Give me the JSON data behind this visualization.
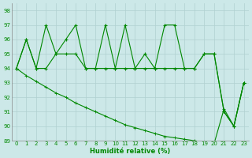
{
  "xlabel": "Humidité relative (%)",
  "xlim": [
    -0.5,
    23.5
  ],
  "ylim": [
    89,
    98.5
  ],
  "yticks": [
    89,
    90,
    91,
    92,
    93,
    94,
    95,
    96,
    97,
    98
  ],
  "xticks": [
    0,
    1,
    2,
    3,
    4,
    5,
    6,
    7,
    8,
    9,
    10,
    11,
    12,
    13,
    14,
    15,
    16,
    17,
    18,
    19,
    20,
    21,
    22,
    23
  ],
  "background_color": "#cce8e8",
  "grid_color": "#b0d0d0",
  "line_color": "#008800",
  "series_top": [
    94,
    96,
    94,
    97,
    95,
    96,
    97,
    94,
    94,
    97,
    94,
    97,
    94,
    95,
    94,
    97,
    97,
    94,
    94,
    95,
    95,
    91,
    90,
    93
  ],
  "series_mid": [
    94,
    96,
    94,
    94,
    95,
    95,
    95,
    94,
    94,
    94,
    94,
    94,
    94,
    94,
    94,
    94,
    94,
    94,
    94,
    95,
    95,
    91,
    90,
    93
  ],
  "series_low": [
    94,
    93.5,
    93.1,
    92.7,
    92.3,
    92.0,
    91.6,
    91.3,
    91.0,
    90.7,
    90.4,
    90.1,
    89.9,
    89.7,
    89.5,
    89.3,
    89.2,
    89.1,
    89.0,
    88.9,
    88.8,
    91.2,
    90.0,
    93.0
  ]
}
